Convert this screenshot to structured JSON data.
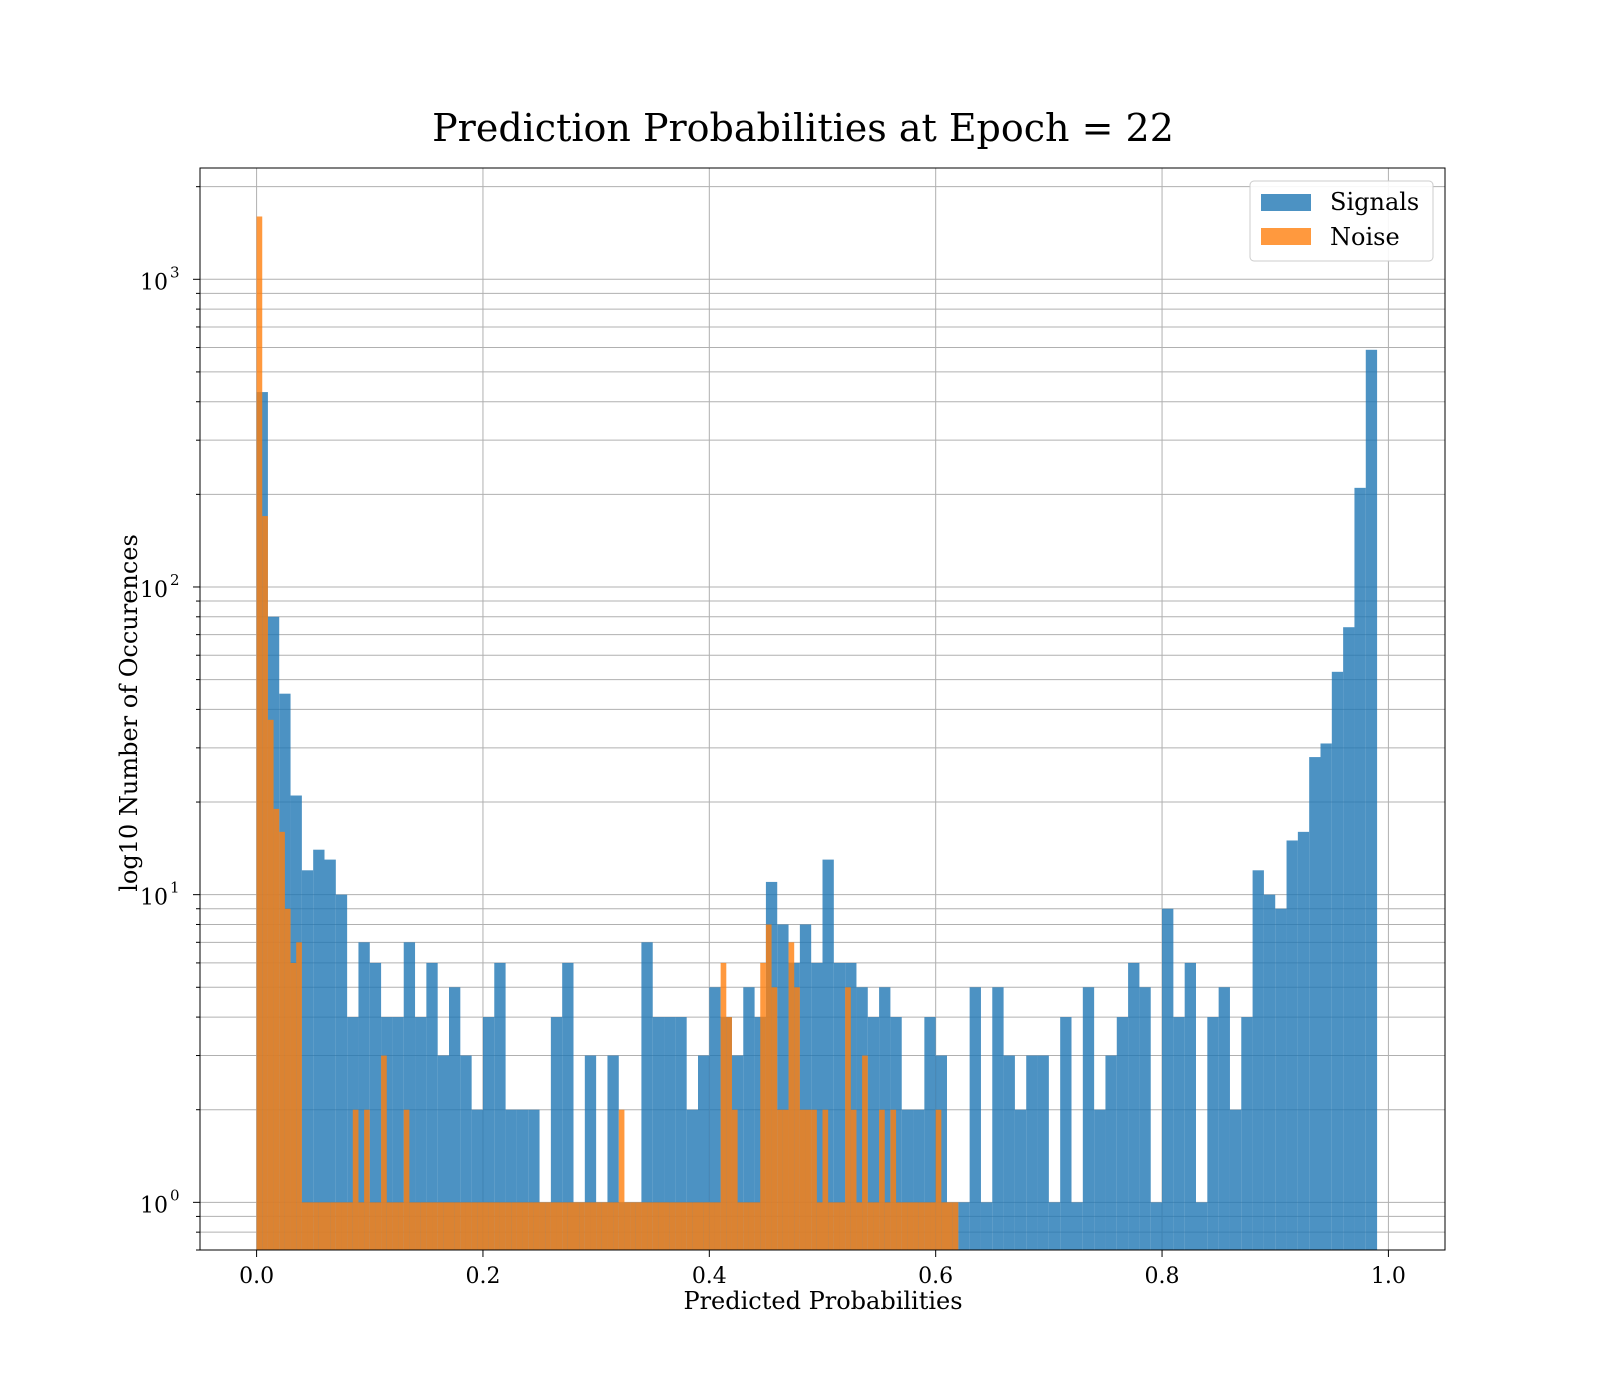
{
  "chart_data": {
    "type": "bar",
    "title": "Prediction Probabilities at Epoch = 22",
    "xlabel": "Predicted Probabilities",
    "ylabel": "log10 Number of Occurences",
    "xlim": [
      -0.05,
      1.05
    ],
    "ylim": [
      0.7,
      2300
    ],
    "yscale": "log",
    "grid": true,
    "legend_position": "top-right",
    "x_ticks": [
      0.0,
      0.2,
      0.4,
      0.6,
      0.8,
      1.0
    ],
    "x_tick_labels": [
      "0.0",
      "0.2",
      "0.4",
      "0.6",
      "0.8",
      "1.0"
    ],
    "y_ticks": [
      1,
      10,
      100,
      1000
    ],
    "y_tick_labels": [
      {
        "base": "10",
        "exp": "0"
      },
      {
        "base": "10",
        "exp": "1"
      },
      {
        "base": "10",
        "exp": "2"
      },
      {
        "base": "10",
        "exp": "3"
      }
    ],
    "colors": {
      "Signals": "#1f77b4",
      "Noise": "#ff7f0e"
    },
    "series": [
      {
        "name": "Signals",
        "bin_width": 0.01,
        "bin_start": 0.0,
        "values": [
          430,
          80,
          45,
          21,
          12,
          14,
          13,
          10,
          4,
          7,
          6,
          4,
          4,
          7,
          4,
          6,
          3,
          5,
          3,
          2,
          4,
          6,
          2,
          2,
          2,
          1,
          4,
          6,
          1,
          3,
          1,
          3,
          1,
          1,
          7,
          4,
          4,
          4,
          2,
          3,
          5,
          4,
          3,
          5,
          4,
          11,
          8,
          6,
          8,
          6,
          13,
          6,
          6,
          5,
          4,
          5,
          4,
          2,
          2,
          4,
          3,
          1,
          1,
          5,
          1,
          5,
          3,
          2,
          3,
          3,
          1,
          4,
          1,
          5,
          2,
          3,
          4,
          6,
          5,
          1,
          9,
          4,
          6,
          1,
          4,
          5,
          2,
          4,
          12,
          10,
          9,
          15,
          16,
          28,
          31,
          53,
          74,
          210,
          590
        ]
      },
      {
        "name": "Noise",
        "bin_width": 0.005,
        "bin_start": 0.0,
        "values": [
          1600,
          170,
          37,
          19,
          16,
          9,
          6,
          7,
          1,
          1,
          1,
          1,
          1,
          1,
          1,
          1,
          1,
          2,
          1,
          2,
          1,
          1,
          3,
          1,
          1,
          1,
          2,
          1,
          1,
          1,
          1,
          1,
          1,
          1,
          1,
          1,
          1,
          1,
          1,
          1,
          1,
          1,
          1,
          1,
          1,
          1,
          1,
          1,
          1,
          1,
          1,
          1,
          1,
          1,
          1,
          1,
          1,
          1,
          1,
          1,
          1,
          1,
          1,
          1,
          2,
          1,
          1,
          1,
          1,
          1,
          1,
          1,
          1,
          1,
          1,
          1,
          1,
          1,
          1,
          1,
          1,
          1,
          6,
          4,
          2,
          1,
          1,
          1,
          1,
          6,
          8,
          5,
          2,
          2,
          7,
          5,
          2,
          2,
          2,
          1,
          2,
          1,
          1,
          1,
          5,
          2,
          1,
          3,
          1,
          1,
          2,
          1,
          2,
          1,
          1,
          1,
          1,
          1,
          1,
          1,
          2,
          1,
          1,
          1
        ]
      }
    ]
  }
}
